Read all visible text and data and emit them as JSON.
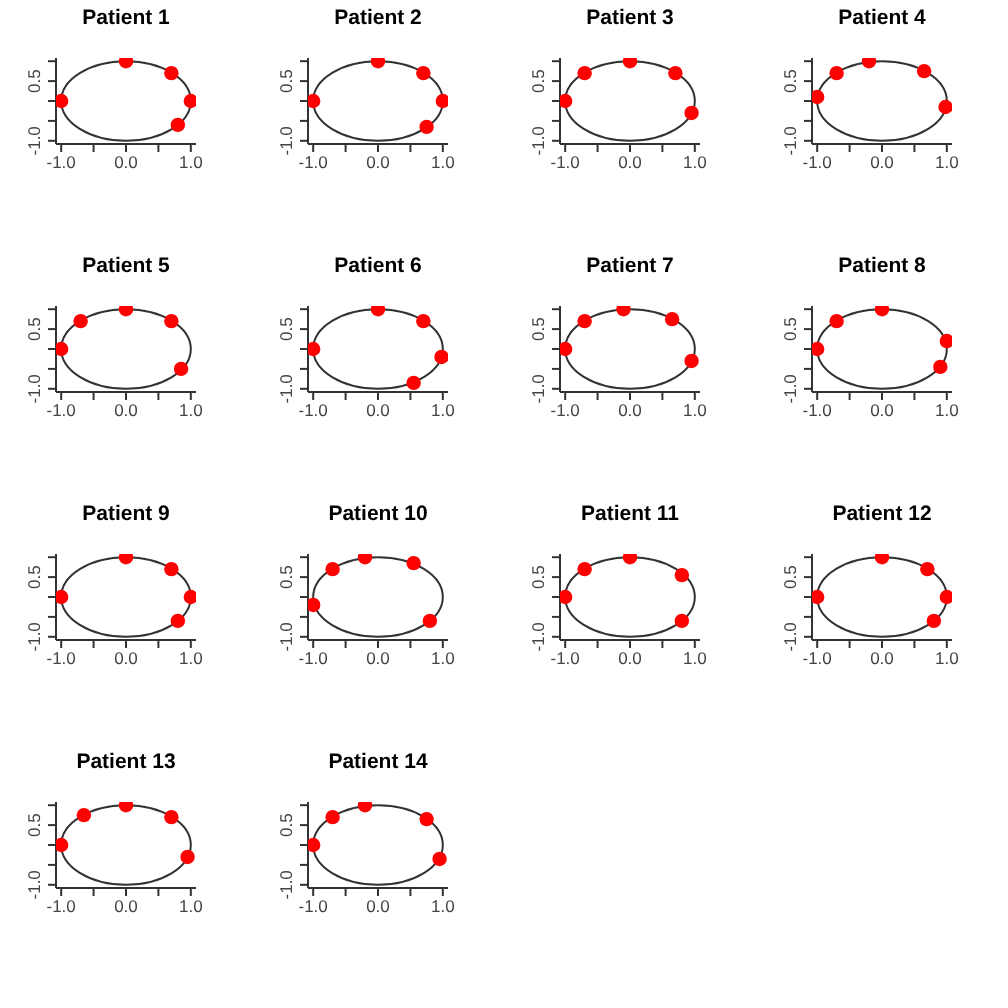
{
  "chart_data": [
    {
      "type": "scatter",
      "title": "Patient 1",
      "xlim": [
        -1.08,
        1.08
      ],
      "ylim": [
        -1.08,
        1.08
      ],
      "xticks": [
        {
          "value": -1,
          "label": "-1.0"
        },
        {
          "value": -0.5,
          "label": null
        },
        {
          "value": 0,
          "label": "0.0"
        },
        {
          "value": 0.5,
          "label": null
        },
        {
          "value": 1,
          "label": "1.0"
        }
      ],
      "yticks": [
        {
          "value": -1,
          "label": "-1.0"
        },
        {
          "value": -0.5,
          "label": null
        },
        {
          "value": 0,
          "label": null
        },
        {
          "value": 0.5,
          "label": "0.5"
        },
        {
          "value": 1,
          "label": null
        }
      ],
      "series": [
        {
          "type": "scatter",
          "marker": "circle",
          "color": "#ff0000",
          "x": [
            0,
            0.7,
            1,
            0.8,
            -1
          ],
          "values": [
            1,
            0.7,
            0,
            -0.6,
            0
          ]
        }
      ]
    },
    {
      "type": "scatter",
      "title": "Patient 2",
      "xlim": [
        -1.08,
        1.08
      ],
      "ylim": [
        -1.08,
        1.08
      ],
      "xticks": [
        {
          "value": -1,
          "label": "-1.0"
        },
        {
          "value": -0.5,
          "label": null
        },
        {
          "value": 0,
          "label": "0.0"
        },
        {
          "value": 0.5,
          "label": null
        },
        {
          "value": 1,
          "label": "1.0"
        }
      ],
      "yticks": [
        {
          "value": -1,
          "label": "-1.0"
        },
        {
          "value": -0.5,
          "label": null
        },
        {
          "value": 0,
          "label": null
        },
        {
          "value": 0.5,
          "label": "0.5"
        },
        {
          "value": 1,
          "label": null
        }
      ],
      "series": [
        {
          "type": "scatter",
          "marker": "circle",
          "color": "#ff0000",
          "x": [
            0,
            0.7,
            1,
            0.75,
            -1
          ],
          "values": [
            1,
            0.7,
            0,
            -0.65,
            0
          ]
        }
      ]
    },
    {
      "type": "scatter",
      "title": "Patient 3",
      "xlim": [
        -1.08,
        1.08
      ],
      "ylim": [
        -1.08,
        1.08
      ],
      "xticks": [
        {
          "value": -1,
          "label": "-1.0"
        },
        {
          "value": -0.5,
          "label": null
        },
        {
          "value": 0,
          "label": "0.0"
        },
        {
          "value": 0.5,
          "label": null
        },
        {
          "value": 1,
          "label": "1.0"
        }
      ],
      "yticks": [
        {
          "value": -1,
          "label": "-1.0"
        },
        {
          "value": -0.5,
          "label": null
        },
        {
          "value": 0,
          "label": null
        },
        {
          "value": 0.5,
          "label": "0.5"
        },
        {
          "value": 1,
          "label": null
        }
      ],
      "series": [
        {
          "type": "scatter",
          "marker": "circle",
          "color": "#ff0000",
          "x": [
            -1,
            -0.7,
            0,
            0.7,
            0.95
          ],
          "values": [
            0,
            0.7,
            1,
            0.7,
            -0.3
          ]
        }
      ]
    },
    {
      "type": "scatter",
      "title": "Patient 4",
      "xlim": [
        -1.08,
        1.08
      ],
      "ylim": [
        -1.08,
        1.08
      ],
      "xticks": [
        {
          "value": -1,
          "label": "-1.0"
        },
        {
          "value": -0.5,
          "label": null
        },
        {
          "value": 0,
          "label": "0.0"
        },
        {
          "value": 0.5,
          "label": null
        },
        {
          "value": 1,
          "label": "1.0"
        }
      ],
      "yticks": [
        {
          "value": -1,
          "label": "-1.0"
        },
        {
          "value": -0.5,
          "label": null
        },
        {
          "value": 0,
          "label": null
        },
        {
          "value": 0.5,
          "label": "0.5"
        },
        {
          "value": 1,
          "label": null
        }
      ],
      "series": [
        {
          "type": "scatter",
          "marker": "circle",
          "color": "#ff0000",
          "x": [
            -1,
            -0.7,
            -0.2,
            0.65,
            0.98
          ],
          "values": [
            0.1,
            0.7,
            1,
            0.75,
            -0.15
          ]
        }
      ]
    },
    {
      "type": "scatter",
      "title": "Patient 5",
      "xlim": [
        -1.08,
        1.08
      ],
      "ylim": [
        -1.08,
        1.08
      ],
      "xticks": [
        {
          "value": -1,
          "label": "-1.0"
        },
        {
          "value": -0.5,
          "label": null
        },
        {
          "value": 0,
          "label": "0.0"
        },
        {
          "value": 0.5,
          "label": null
        },
        {
          "value": 1,
          "label": "1.0"
        }
      ],
      "yticks": [
        {
          "value": -1,
          "label": "-1.0"
        },
        {
          "value": -0.5,
          "label": null
        },
        {
          "value": 0,
          "label": null
        },
        {
          "value": 0.5,
          "label": "0.5"
        },
        {
          "value": 1,
          "label": null
        }
      ],
      "series": [
        {
          "type": "scatter",
          "marker": "circle",
          "color": "#ff0000",
          "x": [
            -1,
            -0.7,
            0,
            0.7,
            0.85
          ],
          "values": [
            0,
            0.7,
            1,
            0.7,
            -0.5
          ]
        }
      ]
    },
    {
      "type": "scatter",
      "title": "Patient 6",
      "xlim": [
        -1.08,
        1.08
      ],
      "ylim": [
        -1.08,
        1.08
      ],
      "xticks": [
        {
          "value": -1,
          "label": "-1.0"
        },
        {
          "value": -0.5,
          "label": null
        },
        {
          "value": 0,
          "label": "0.0"
        },
        {
          "value": 0.5,
          "label": null
        },
        {
          "value": 1,
          "label": "1.0"
        }
      ],
      "yticks": [
        {
          "value": -1,
          "label": "-1.0"
        },
        {
          "value": -0.5,
          "label": null
        },
        {
          "value": 0,
          "label": null
        },
        {
          "value": 0.5,
          "label": "0.5"
        },
        {
          "value": 1,
          "label": null
        }
      ],
      "series": [
        {
          "type": "scatter",
          "marker": "circle",
          "color": "#ff0000",
          "x": [
            -1,
            0,
            0.7,
            0.98,
            0.55
          ],
          "values": [
            0,
            1,
            0.7,
            -0.2,
            -0.85
          ]
        }
      ]
    },
    {
      "type": "scatter",
      "title": "Patient 7",
      "xlim": [
        -1.08,
        1.08
      ],
      "ylim": [
        -1.08,
        1.08
      ],
      "xticks": [
        {
          "value": -1,
          "label": "-1.0"
        },
        {
          "value": -0.5,
          "label": null
        },
        {
          "value": 0,
          "label": "0.0"
        },
        {
          "value": 0.5,
          "label": null
        },
        {
          "value": 1,
          "label": "1.0"
        }
      ],
      "yticks": [
        {
          "value": -1,
          "label": "-1.0"
        },
        {
          "value": -0.5,
          "label": null
        },
        {
          "value": 0,
          "label": null
        },
        {
          "value": 0.5,
          "label": "0.5"
        },
        {
          "value": 1,
          "label": null
        }
      ],
      "series": [
        {
          "type": "scatter",
          "marker": "circle",
          "color": "#ff0000",
          "x": [
            -1,
            -0.7,
            -0.1,
            0.65,
            0.95
          ],
          "values": [
            0,
            0.7,
            1,
            0.75,
            -0.3
          ]
        }
      ]
    },
    {
      "type": "scatter",
      "title": "Patient 8",
      "xlim": [
        -1.08,
        1.08
      ],
      "ylim": [
        -1.08,
        1.08
      ],
      "xticks": [
        {
          "value": -1,
          "label": "-1.0"
        },
        {
          "value": -0.5,
          "label": null
        },
        {
          "value": 0,
          "label": "0.0"
        },
        {
          "value": 0.5,
          "label": null
        },
        {
          "value": 1,
          "label": "1.0"
        }
      ],
      "yticks": [
        {
          "value": -1,
          "label": "-1.0"
        },
        {
          "value": -0.5,
          "label": null
        },
        {
          "value": 0,
          "label": null
        },
        {
          "value": 0.5,
          "label": "0.5"
        },
        {
          "value": 1,
          "label": null
        }
      ],
      "series": [
        {
          "type": "scatter",
          "marker": "circle",
          "color": "#ff0000",
          "x": [
            -1,
            -0.7,
            0,
            1,
            0.9
          ],
          "values": [
            0,
            0.7,
            1,
            0.2,
            -0.45
          ]
        }
      ]
    },
    {
      "type": "scatter",
      "title": "Patient 9",
      "xlim": [
        -1.08,
        1.08
      ],
      "ylim": [
        -1.08,
        1.08
      ],
      "xticks": [
        {
          "value": -1,
          "label": "-1.0"
        },
        {
          "value": -0.5,
          "label": null
        },
        {
          "value": 0,
          "label": "0.0"
        },
        {
          "value": 0.5,
          "label": null
        },
        {
          "value": 1,
          "label": "1.0"
        }
      ],
      "yticks": [
        {
          "value": -1,
          "label": "-1.0"
        },
        {
          "value": -0.5,
          "label": null
        },
        {
          "value": 0,
          "label": null
        },
        {
          "value": 0.5,
          "label": "0.5"
        },
        {
          "value": 1,
          "label": null
        }
      ],
      "series": [
        {
          "type": "scatter",
          "marker": "circle",
          "color": "#ff0000",
          "x": [
            0,
            0.7,
            1,
            0.8,
            -1
          ],
          "values": [
            1,
            0.7,
            0,
            -0.6,
            0
          ]
        }
      ]
    },
    {
      "type": "scatter",
      "title": "Patient 10",
      "xlim": [
        -1.08,
        1.08
      ],
      "ylim": [
        -1.08,
        1.08
      ],
      "xticks": [
        {
          "value": -1,
          "label": "-1.0"
        },
        {
          "value": -0.5,
          "label": null
        },
        {
          "value": 0,
          "label": "0.0"
        },
        {
          "value": 0.5,
          "label": null
        },
        {
          "value": 1,
          "label": "1.0"
        }
      ],
      "yticks": [
        {
          "value": -1,
          "label": "-1.0"
        },
        {
          "value": -0.5,
          "label": null
        },
        {
          "value": 0,
          "label": null
        },
        {
          "value": 0.5,
          "label": "0.5"
        },
        {
          "value": 1,
          "label": null
        }
      ],
      "series": [
        {
          "type": "scatter",
          "marker": "circle",
          "color": "#ff0000",
          "x": [
            -1,
            -0.7,
            -0.2,
            0.55,
            0.8
          ],
          "values": [
            -0.2,
            0.7,
            1,
            0.85,
            -0.6
          ]
        }
      ]
    },
    {
      "type": "scatter",
      "title": "Patient 11",
      "xlim": [
        -1.08,
        1.08
      ],
      "ylim": [
        -1.08,
        1.08
      ],
      "xticks": [
        {
          "value": -1,
          "label": "-1.0"
        },
        {
          "value": -0.5,
          "label": null
        },
        {
          "value": 0,
          "label": "0.0"
        },
        {
          "value": 0.5,
          "label": null
        },
        {
          "value": 1,
          "label": "1.0"
        }
      ],
      "yticks": [
        {
          "value": -1,
          "label": "-1.0"
        },
        {
          "value": -0.5,
          "label": null
        },
        {
          "value": 0,
          "label": null
        },
        {
          "value": 0.5,
          "label": "0.5"
        },
        {
          "value": 1,
          "label": null
        }
      ],
      "series": [
        {
          "type": "scatter",
          "marker": "circle",
          "color": "#ff0000",
          "x": [
            -1,
            -0.7,
            0,
            0.8,
            0.8
          ],
          "values": [
            0,
            0.7,
            1,
            0.55,
            -0.6
          ]
        }
      ]
    },
    {
      "type": "scatter",
      "title": "Patient 12",
      "xlim": [
        -1.08,
        1.08
      ],
      "ylim": [
        -1.08,
        1.08
      ],
      "xticks": [
        {
          "value": -1,
          "label": "-1.0"
        },
        {
          "value": -0.5,
          "label": null
        },
        {
          "value": 0,
          "label": "0.0"
        },
        {
          "value": 0.5,
          "label": null
        },
        {
          "value": 1,
          "label": "1.0"
        }
      ],
      "yticks": [
        {
          "value": -1,
          "label": "-1.0"
        },
        {
          "value": -0.5,
          "label": null
        },
        {
          "value": 0,
          "label": null
        },
        {
          "value": 0.5,
          "label": "0.5"
        },
        {
          "value": 1,
          "label": null
        }
      ],
      "series": [
        {
          "type": "scatter",
          "marker": "circle",
          "color": "#ff0000",
          "x": [
            0,
            0.7,
            1,
            0.8,
            -1
          ],
          "values": [
            1,
            0.7,
            0,
            -0.6,
            0
          ]
        }
      ]
    },
    {
      "type": "scatter",
      "title": "Patient 13",
      "xlim": [
        -1.08,
        1.08
      ],
      "ylim": [
        -1.08,
        1.08
      ],
      "xticks": [
        {
          "value": -1,
          "label": "-1.0"
        },
        {
          "value": -0.5,
          "label": null
        },
        {
          "value": 0,
          "label": "0.0"
        },
        {
          "value": 0.5,
          "label": null
        },
        {
          "value": 1,
          "label": "1.0"
        }
      ],
      "yticks": [
        {
          "value": -1,
          "label": "-1.0"
        },
        {
          "value": -0.5,
          "label": null
        },
        {
          "value": 0,
          "label": null
        },
        {
          "value": 0.5,
          "label": "0.5"
        },
        {
          "value": 1,
          "label": null
        }
      ],
      "series": [
        {
          "type": "scatter",
          "marker": "circle",
          "color": "#ff0000",
          "x": [
            -1,
            -0.65,
            0,
            0.7,
            0.95
          ],
          "values": [
            0,
            0.75,
            1,
            0.7,
            -0.3
          ]
        }
      ]
    },
    {
      "type": "scatter",
      "title": "Patient 14",
      "xlim": [
        -1.08,
        1.08
      ],
      "ylim": [
        -1.08,
        1.08
      ],
      "xticks": [
        {
          "value": -1,
          "label": "-1.0"
        },
        {
          "value": -0.5,
          "label": null
        },
        {
          "value": 0,
          "label": "0.0"
        },
        {
          "value": 0.5,
          "label": null
        },
        {
          "value": 1,
          "label": "1.0"
        }
      ],
      "yticks": [
        {
          "value": -1,
          "label": "-1.0"
        },
        {
          "value": -0.5,
          "label": null
        },
        {
          "value": 0,
          "label": null
        },
        {
          "value": 0.5,
          "label": "0.5"
        },
        {
          "value": 1,
          "label": null
        }
      ],
      "series": [
        {
          "type": "scatter",
          "marker": "circle",
          "color": "#ff0000",
          "x": [
            -1,
            -0.7,
            -0.2,
            0.75,
            0.95
          ],
          "values": [
            0,
            0.7,
            1,
            0.65,
            -0.35
          ]
        }
      ]
    }
  ]
}
